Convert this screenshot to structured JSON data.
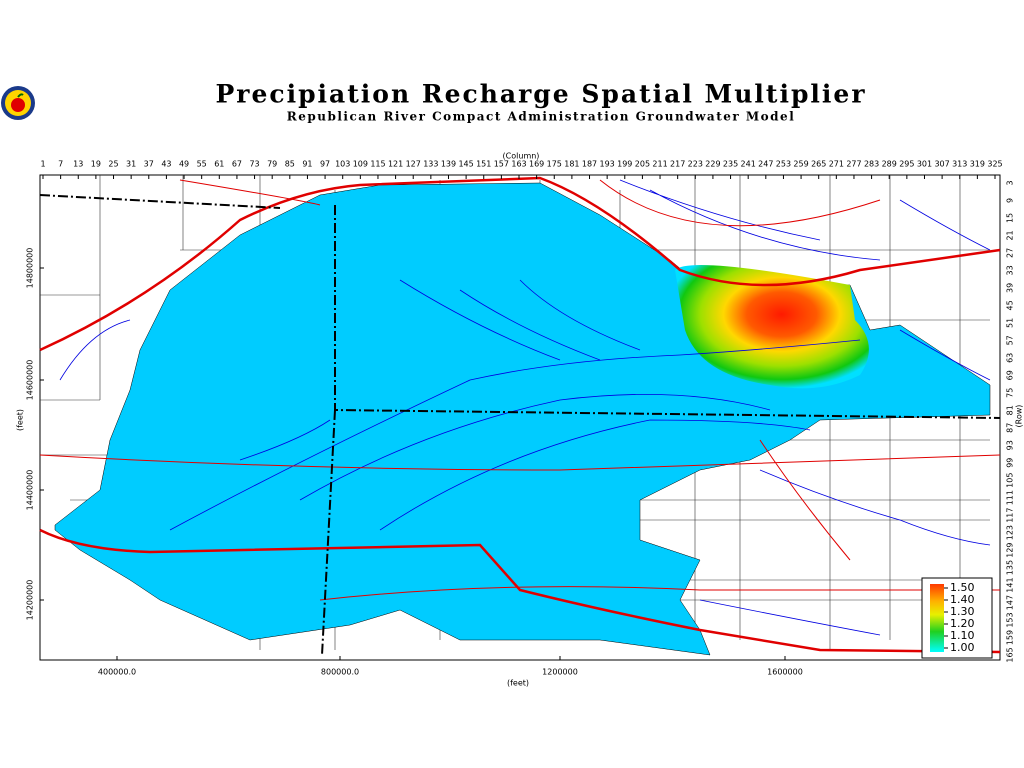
{
  "header": {
    "title": "Precipiation Recharge Spatial Multiplier",
    "subtitle": "Republican River Compact Administration Groundwater Model"
  },
  "map": {
    "column_label": "(Column)",
    "row_label": "(Row)",
    "x_label": "(feet)",
    "y_label": "(feet)",
    "columns": [
      1,
      7,
      13,
      19,
      25,
      31,
      37,
      43,
      49,
      55,
      61,
      67,
      73,
      79,
      85,
      91,
      97,
      103,
      109,
      115,
      121,
      127,
      133,
      139,
      145,
      151,
      157,
      163,
      169,
      175,
      181,
      187,
      193,
      199,
      205,
      211,
      217,
      223,
      229,
      235,
      241,
      247,
      253,
      259,
      265,
      271,
      277,
      283,
      289,
      295,
      301,
      307,
      313,
      319,
      325
    ],
    "rows": [
      3,
      9,
      15,
      21,
      27,
      33,
      39,
      45,
      51,
      57,
      63,
      69,
      75,
      81,
      87,
      93,
      99,
      105,
      111,
      117,
      123,
      129,
      135,
      141,
      147,
      153,
      159,
      165
    ],
    "x_ticks": [
      "400000.0",
      "800000.0",
      "1200000",
      "1600000"
    ],
    "y_ticks": [
      "14800000",
      "14600000",
      "14400000",
      "14200000"
    ]
  },
  "legend": {
    "labels": [
      "1.50",
      "1.40",
      "1.30",
      "1.20",
      "1.10",
      "1.00"
    ]
  }
}
